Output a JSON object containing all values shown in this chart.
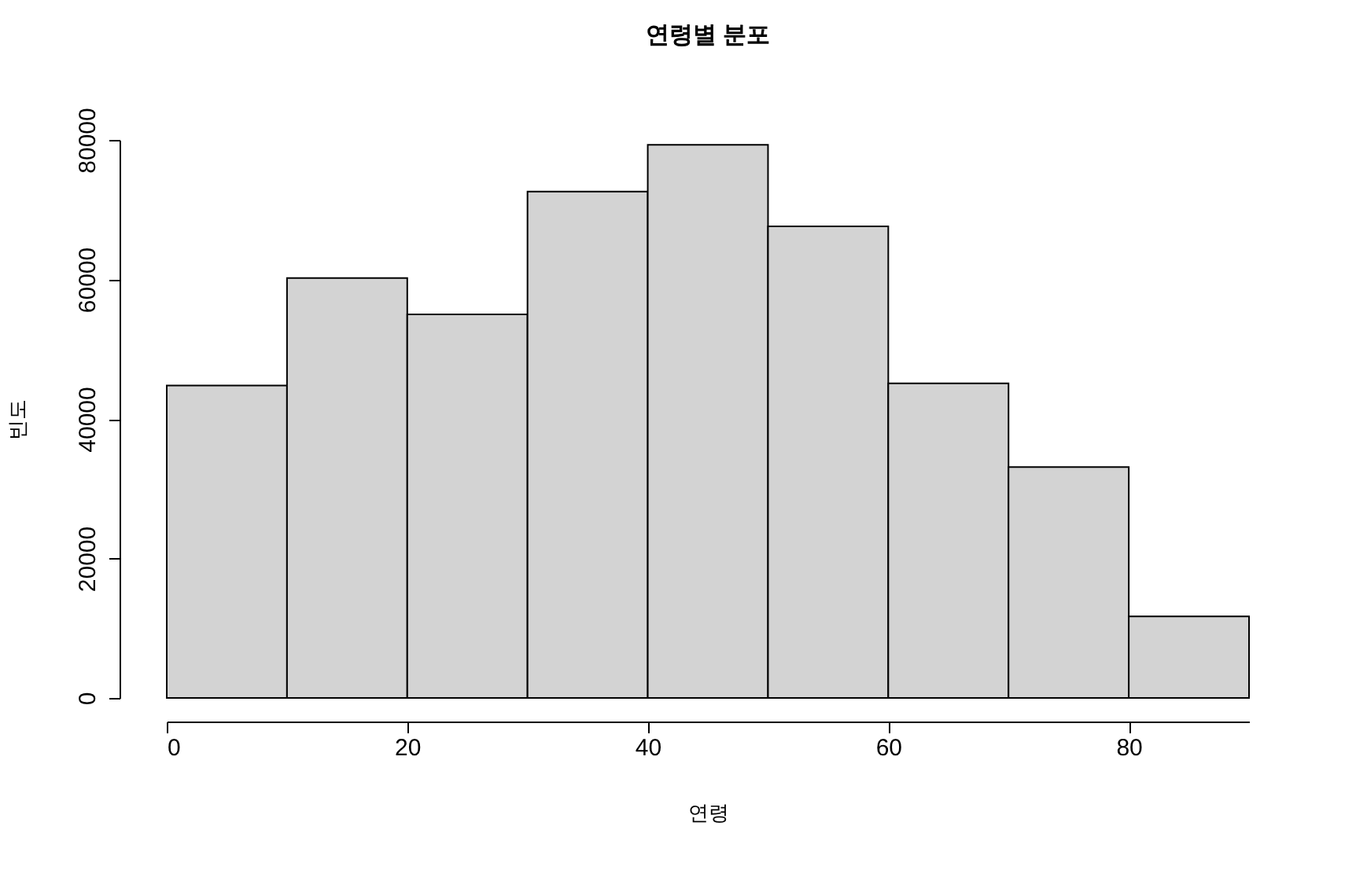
{
  "chart_data": {
    "type": "histogram",
    "title": "연령별 분포",
    "xlabel": "연령",
    "ylabel": "빈도",
    "bins": [
      0,
      10,
      20,
      30,
      40,
      50,
      60,
      70,
      80,
      90
    ],
    "values": [
      44800,
      60200,
      55000,
      72600,
      79300,
      67600,
      45100,
      33100,
      11700
    ],
    "color": "#d3d3d3",
    "xlim": [
      0,
      90
    ],
    "xticks": [
      0,
      20,
      40,
      60,
      80
    ],
    "ylim": [
      0,
      80000
    ],
    "yticks": [
      0,
      20000,
      40000,
      60000,
      80000
    ],
    "grid": false
  }
}
